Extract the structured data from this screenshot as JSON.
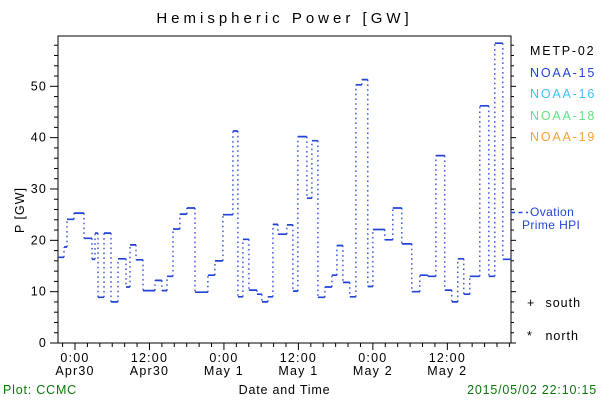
{
  "title": "Hemispheric Power [GW]",
  "legend": {
    "satellites": [
      {
        "label": "METP-02",
        "color": "#000000"
      },
      {
        "label": "NOAA-15",
        "color": "#2343d7"
      },
      {
        "label": "NOAA-16",
        "color": "#3cc2f5"
      },
      {
        "label": "NOAA-18",
        "color": "#62e383"
      },
      {
        "label": "NOAA-19",
        "color": "#f4a237"
      }
    ],
    "line_series": {
      "label_line1": "Ovation",
      "label_line2": "Prime HPI",
      "color": "#2343d7"
    },
    "hemisphere_markers": [
      {
        "symbol": "+",
        "label": "south"
      },
      {
        "symbol": "*",
        "label": "north"
      }
    ]
  },
  "footer": {
    "left": "Plot: CCMC",
    "center": "Date and Time",
    "right": "2015/05/02 22:10:15",
    "side_text_color": "#0b770b"
  },
  "chart_data": {
    "type": "line",
    "title": "Hemispheric Power [GW]",
    "xlabel": "Date and Time",
    "ylabel": "P [GW]",
    "series_name": "Ovation Prime HPI",
    "line_color": "#2343d7",
    "frame_color": "#000000",
    "legend_position": "right",
    "grid": false,
    "ylim": [
      0,
      59.8
    ],
    "y_major_ticks": [
      0,
      10,
      20,
      30,
      40,
      50
    ],
    "y_minor_step": 2,
    "x_axis_note": "hours relative to 2015 Apr 30 0:00, as labeled on axis",
    "xlim_hours": [
      -2.74,
      70.26
    ],
    "x_minor_step_hours": 2,
    "x_major_ticks": [
      {
        "t": 0,
        "time": "0:00",
        "date": "Apr30"
      },
      {
        "t": 12,
        "time": "12:00",
        "date": "Apr30"
      },
      {
        "t": 24,
        "time": "0:00",
        "date": "May 1"
      },
      {
        "t": 36,
        "time": "12:00",
        "date": "May 1"
      },
      {
        "t": 48,
        "time": "0:00",
        "date": "May 2"
      },
      {
        "t": 60,
        "time": "12:00",
        "date": "May 2"
      }
    ],
    "step_points_hours_gw": [
      [
        -2.74,
        16.7
      ],
      [
        -1.77,
        18.7
      ],
      [
        -1.29,
        24.1
      ],
      [
        -0.16,
        25.3
      ],
      [
        1.45,
        20.4
      ],
      [
        2.74,
        16.3
      ],
      [
        3.22,
        21.4
      ],
      [
        3.7,
        8.9
      ],
      [
        4.67,
        21.4
      ],
      [
        5.8,
        8.0
      ],
      [
        6.93,
        16.4
      ],
      [
        8.21,
        10.9
      ],
      [
        8.86,
        19.1
      ],
      [
        9.83,
        16.2
      ],
      [
        10.95,
        10.2
      ],
      [
        12.89,
        12.2
      ],
      [
        14.01,
        10.2
      ],
      [
        14.82,
        13.0
      ],
      [
        15.79,
        22.2
      ],
      [
        16.91,
        25.1
      ],
      [
        18.04,
        26.3
      ],
      [
        19.33,
        9.9
      ],
      [
        21.42,
        13.2
      ],
      [
        22.55,
        16.0
      ],
      [
        23.84,
        25.0
      ],
      [
        25.45,
        41.3
      ],
      [
        26.25,
        9.0
      ],
      [
        27.06,
        20.2
      ],
      [
        28.03,
        10.3
      ],
      [
        29.31,
        9.5
      ],
      [
        30.12,
        8.0
      ],
      [
        31.09,
        9.0
      ],
      [
        31.89,
        23.1
      ],
      [
        32.7,
        21.2
      ],
      [
        34.15,
        23.0
      ],
      [
        35.11,
        10.1
      ],
      [
        35.92,
        40.2
      ],
      [
        37.37,
        28.2
      ],
      [
        38.17,
        39.4
      ],
      [
        39.14,
        8.9
      ],
      [
        40.27,
        10.9
      ],
      [
        41.4,
        13.2
      ],
      [
        42.2,
        19.0
      ],
      [
        43.17,
        11.8
      ],
      [
        44.29,
        9.0
      ],
      [
        45.26,
        50.3
      ],
      [
        46.23,
        51.3
      ],
      [
        47.19,
        11.0
      ],
      [
        48.0,
        22.1
      ],
      [
        49.93,
        20.1
      ],
      [
        51.22,
        26.3
      ],
      [
        52.67,
        19.3
      ],
      [
        54.28,
        10.0
      ],
      [
        55.57,
        13.2
      ],
      [
        56.86,
        13.0
      ],
      [
        58.15,
        36.5
      ],
      [
        59.6,
        10.3
      ],
      [
        60.72,
        8.0
      ],
      [
        61.69,
        16.4
      ],
      [
        62.66,
        9.5
      ],
      [
        63.62,
        13.0
      ],
      [
        65.23,
        46.2
      ],
      [
        66.68,
        13.0
      ],
      [
        67.65,
        58.4
      ],
      [
        68.94,
        16.3
      ]
    ]
  }
}
